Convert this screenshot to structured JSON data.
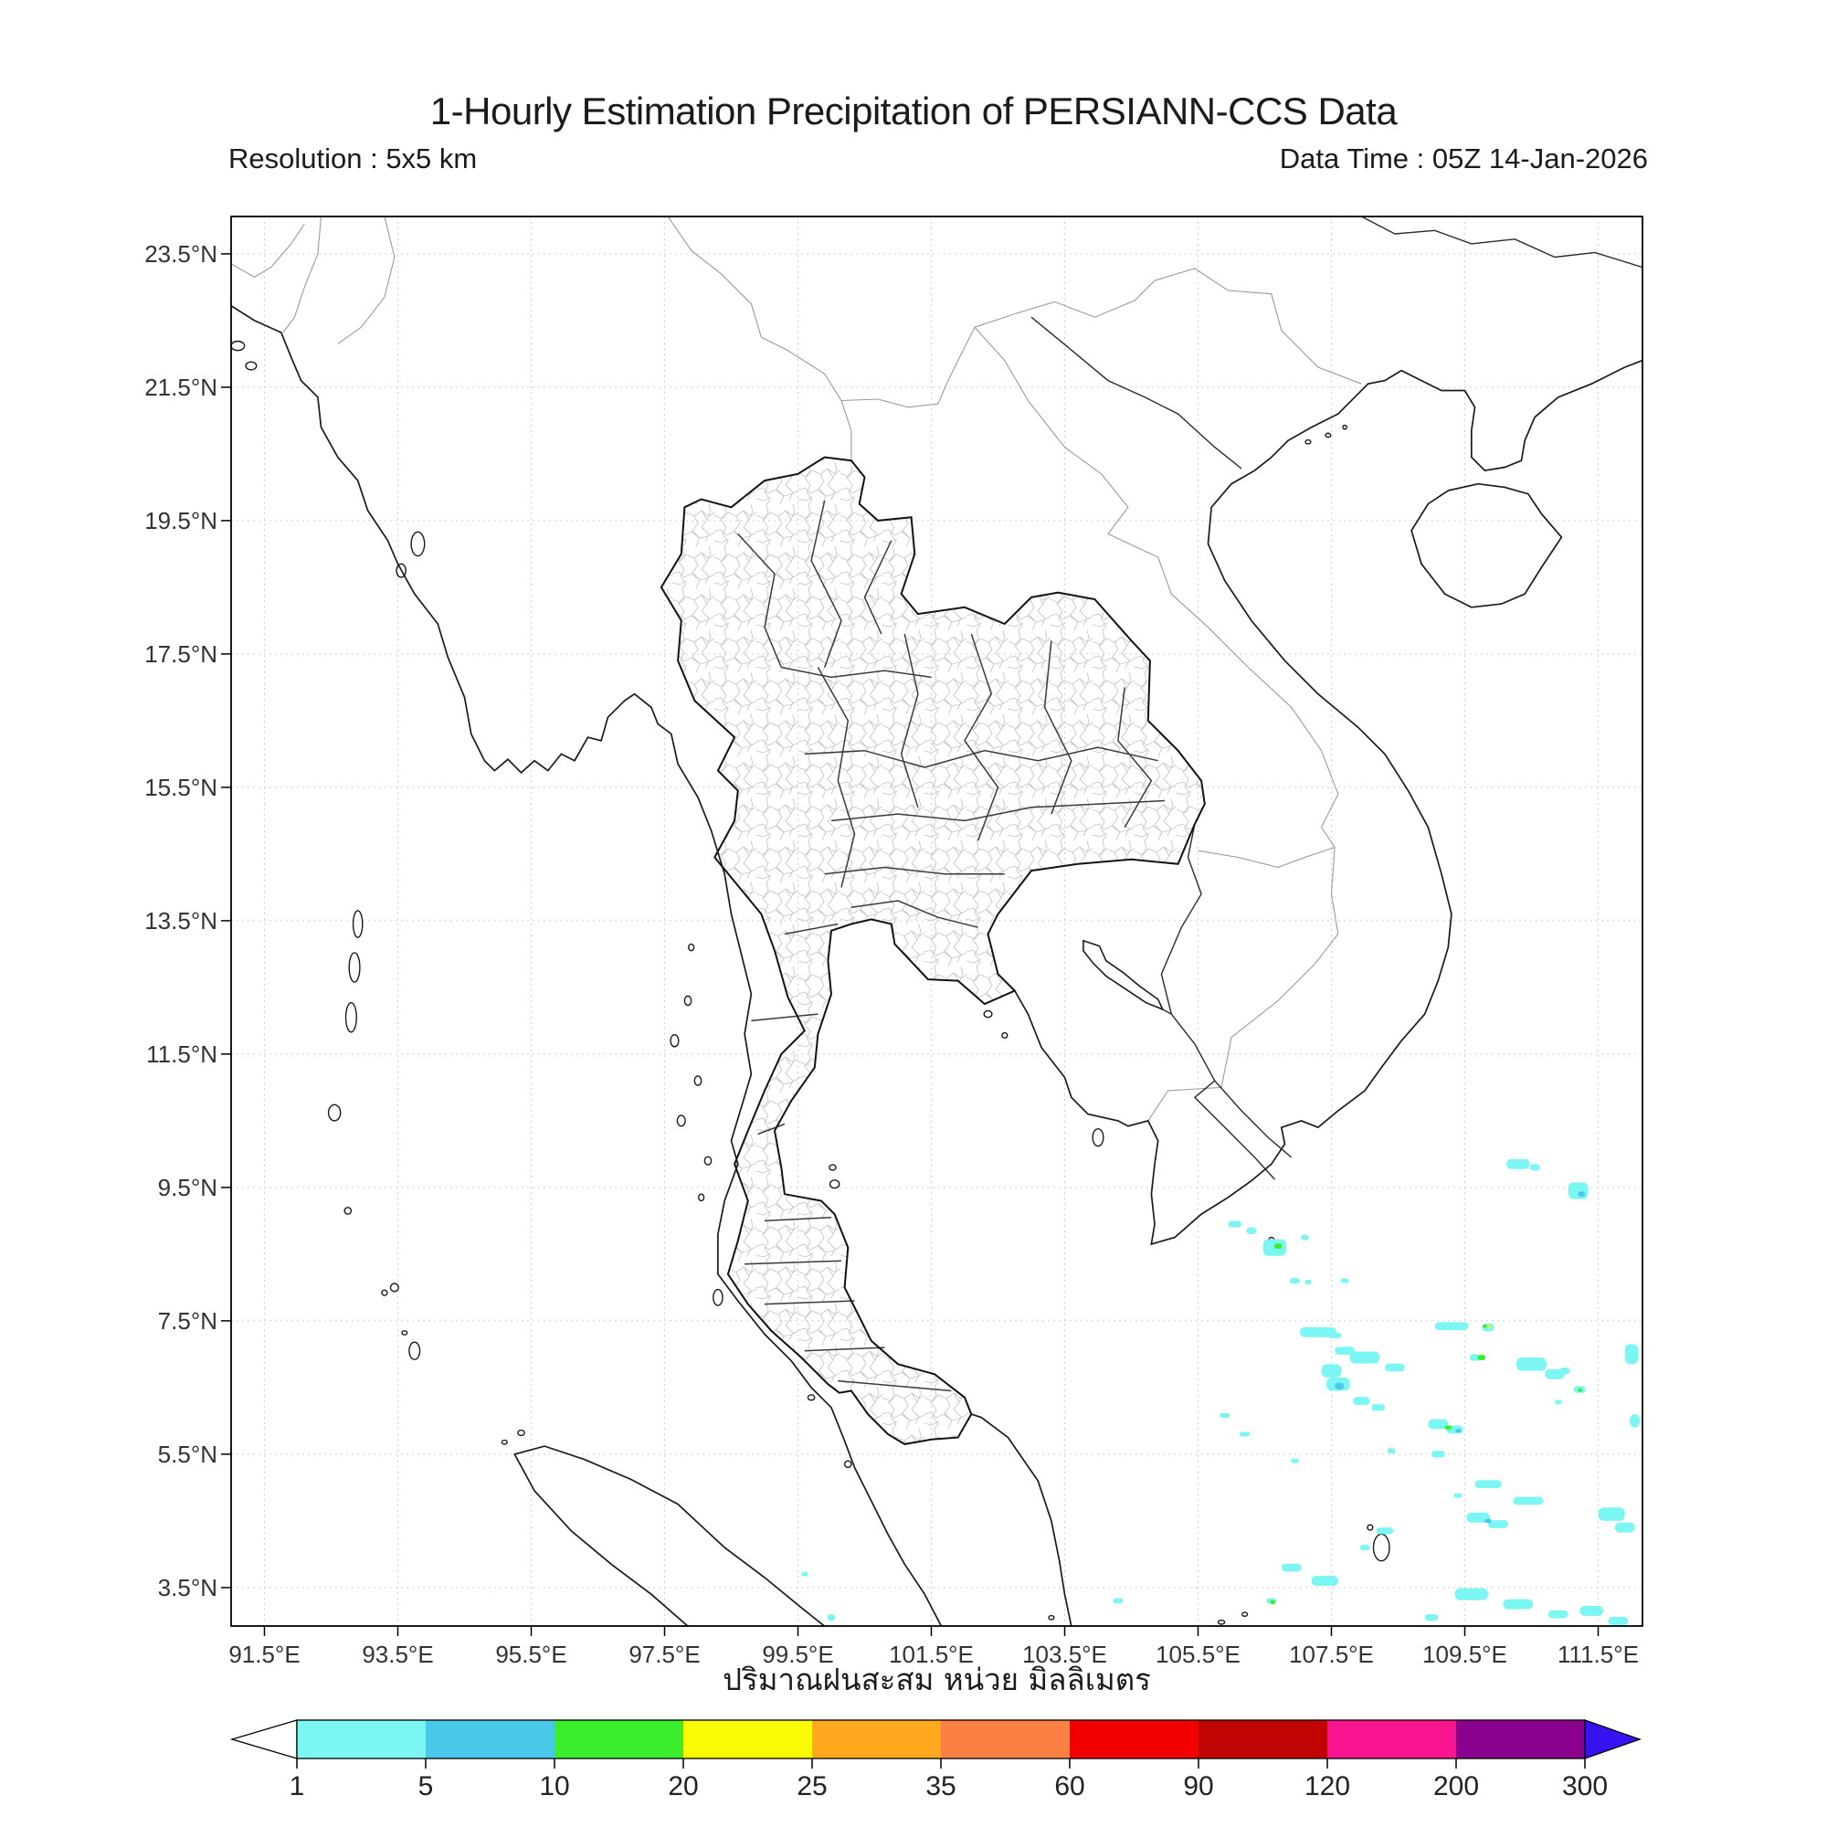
{
  "header": {
    "title": "1-Hourly Estimation Precipitation of PERSIANN-CCS Data",
    "resolution": "Resolution : 5x5 km",
    "data_time": "Data Time : 05Z 14-Jan-2026"
  },
  "footer": {
    "xlabel_thai": "ปริมาณฝนสะสม หน่วย มิลลิเมตร"
  },
  "map": {
    "extent": {
      "lon_min": 91.0,
      "lon_max": 112.16,
      "lat_min": 2.92,
      "lat_max": 24.06
    },
    "x_tick_lons": [
      91.5,
      93.5,
      95.5,
      97.5,
      99.5,
      101.5,
      103.5,
      105.5,
      107.5,
      109.5,
      111.5
    ],
    "x_tick_labels": [
      "91.5°E",
      "93.5°E",
      "95.5°E",
      "97.5°E",
      "99.5°E",
      "101.5°E",
      "103.5°E",
      "105.5°E",
      "107.5°E",
      "109.5°E",
      "111.5°E"
    ],
    "y_tick_lats": [
      23.5,
      21.5,
      19.5,
      17.5,
      15.5,
      13.5,
      11.5,
      9.5,
      7.5,
      5.5,
      3.5
    ],
    "y_tick_labels": [
      "23.5°N",
      "21.5°N",
      "19.5°N",
      "17.5°N",
      "15.5°N",
      "13.5°N",
      "11.5°N",
      "9.5°N",
      "7.5°N",
      "5.5°N",
      "3.5°N"
    ],
    "gridline_color": "#d0d0d0",
    "frame_color": "#000000"
  },
  "colorbar": {
    "tick_labels": [
      "1",
      "5",
      "10",
      "20",
      "25",
      "35",
      "60",
      "90",
      "120",
      "200",
      "300"
    ],
    "tick_values": [
      1,
      5,
      10,
      20,
      25,
      35,
      60,
      90,
      120,
      200,
      300
    ],
    "segment_colors": [
      "#7CF6F2",
      "#4AC8EA",
      "#3BEE2B",
      "#FBFB06",
      "#FFA81E",
      "#FC7F44",
      "#F20000",
      "#C00404",
      "#F9158F",
      "#8A018E"
    ],
    "under_color": "#FFFFFF",
    "over_color": "#3813F1"
  },
  "chart_data": {
    "type": "heatmap",
    "title": "1-Hourly Estimation Precipitation of PERSIANN-CCS Data",
    "units": "mm",
    "level_legend": {
      "1": "1-5 mm",
      "2": "5-10 mm",
      "3": "10-20 mm",
      "4": "20-25 mm"
    },
    "patches": [
      [
        110.3,
        9.85,
        0.35,
        0.15,
        1
      ],
      [
        110.55,
        9.8,
        0.15,
        0.1,
        1
      ],
      [
        111.2,
        9.45,
        0.3,
        0.25,
        1
      ],
      [
        111.25,
        9.4,
        0.1,
        0.08,
        2
      ],
      [
        106.05,
        8.95,
        0.2,
        0.1,
        1
      ],
      [
        106.3,
        8.85,
        0.15,
        0.1,
        1
      ],
      [
        106.65,
        8.6,
        0.35,
        0.25,
        1
      ],
      [
        106.7,
        8.62,
        0.12,
        0.08,
        3
      ],
      [
        107.1,
        8.75,
        0.12,
        0.08,
        1
      ],
      [
        106.95,
        8.1,
        0.15,
        0.08,
        1
      ],
      [
        107.15,
        8.08,
        0.1,
        0.07,
        1
      ],
      [
        107.7,
        8.1,
        0.12,
        0.07,
        1
      ],
      [
        107.3,
        7.33,
        0.55,
        0.15,
        1
      ],
      [
        107.55,
        7.28,
        0.2,
        0.08,
        1
      ],
      [
        107.7,
        7.05,
        0.3,
        0.12,
        1
      ],
      [
        108.0,
        6.95,
        0.45,
        0.18,
        1
      ],
      [
        108.45,
        6.8,
        0.3,
        0.12,
        1
      ],
      [
        107.5,
        6.75,
        0.3,
        0.2,
        1
      ],
      [
        107.6,
        6.55,
        0.35,
        0.2,
        1
      ],
      [
        107.62,
        6.52,
        0.14,
        0.1,
        2
      ],
      [
        107.95,
        6.3,
        0.25,
        0.12,
        1
      ],
      [
        108.2,
        6.2,
        0.2,
        0.1,
        1
      ],
      [
        109.3,
        7.42,
        0.5,
        0.12,
        1
      ],
      [
        109.85,
        7.4,
        0.18,
        0.12,
        1
      ],
      [
        109.8,
        7.42,
        0.06,
        0.05,
        3
      ],
      [
        109.87,
        7.41,
        0.05,
        0.05,
        4
      ],
      [
        109.65,
        6.95,
        0.15,
        0.1,
        1
      ],
      [
        109.75,
        6.95,
        0.12,
        0.08,
        3
      ],
      [
        110.5,
        6.85,
        0.45,
        0.2,
        1
      ],
      [
        110.85,
        6.7,
        0.3,
        0.15,
        1
      ],
      [
        111.0,
        6.75,
        0.15,
        0.1,
        1
      ],
      [
        111.22,
        6.47,
        0.18,
        0.1,
        1
      ],
      [
        111.23,
        6.46,
        0.06,
        0.05,
        3
      ],
      [
        110.9,
        6.28,
        0.1,
        0.07,
        1
      ],
      [
        109.1,
        5.95,
        0.3,
        0.15,
        1
      ],
      [
        109.35,
        5.87,
        0.25,
        0.12,
        1
      ],
      [
        109.25,
        5.9,
        0.1,
        0.06,
        3
      ],
      [
        109.4,
        5.85,
        0.08,
        0.05,
        2
      ],
      [
        109.1,
        5.5,
        0.2,
        0.1,
        1
      ],
      [
        108.4,
        5.55,
        0.12,
        0.08,
        1
      ],
      [
        109.85,
        5.05,
        0.4,
        0.12,
        1
      ],
      [
        110.45,
        4.8,
        0.45,
        0.12,
        1
      ],
      [
        109.4,
        4.88,
        0.12,
        0.07,
        1
      ],
      [
        109.7,
        4.55,
        0.35,
        0.15,
        1
      ],
      [
        110.0,
        4.45,
        0.3,
        0.12,
        1
      ],
      [
        109.85,
        4.5,
        0.1,
        0.06,
        2
      ],
      [
        111.7,
        4.6,
        0.4,
        0.2,
        1
      ],
      [
        111.9,
        4.4,
        0.3,
        0.15,
        1
      ],
      [
        112.0,
        7.0,
        0.2,
        0.3,
        1
      ],
      [
        112.05,
        6.0,
        0.15,
        0.2,
        1
      ],
      [
        105.9,
        6.08,
        0.15,
        0.07,
        1
      ],
      [
        106.2,
        5.8,
        0.15,
        0.07,
        1
      ],
      [
        106.95,
        5.4,
        0.12,
        0.07,
        1
      ],
      [
        108.3,
        4.35,
        0.25,
        0.1,
        1
      ],
      [
        108.0,
        4.1,
        0.15,
        0.08,
        1
      ],
      [
        106.9,
        3.8,
        0.3,
        0.12,
        1
      ],
      [
        107.4,
        3.6,
        0.4,
        0.15,
        1
      ],
      [
        106.6,
        3.3,
        0.15,
        0.08,
        1
      ],
      [
        106.62,
        3.28,
        0.08,
        0.06,
        3
      ],
      [
        109.6,
        3.4,
        0.5,
        0.18,
        1
      ],
      [
        110.3,
        3.25,
        0.45,
        0.15,
        1
      ],
      [
        110.9,
        3.1,
        0.3,
        0.12,
        1
      ],
      [
        111.4,
        3.15,
        0.35,
        0.15,
        1
      ],
      [
        111.8,
        3.0,
        0.3,
        0.12,
        1
      ],
      [
        109.0,
        3.05,
        0.2,
        0.1,
        1
      ],
      [
        104.3,
        3.3,
        0.15,
        0.08,
        1
      ],
      [
        99.6,
        3.7,
        0.1,
        0.06,
        1
      ],
      [
        99.62,
        3.72,
        0.05,
        0.04,
        1
      ],
      [
        100.0,
        3.05,
        0.12,
        0.1,
        1
      ]
    ]
  }
}
